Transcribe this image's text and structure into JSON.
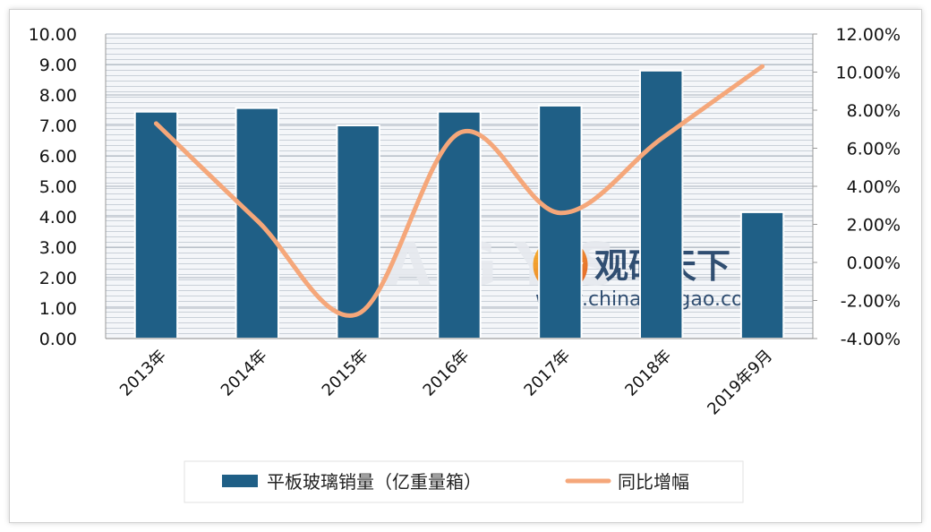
{
  "chart_data": {
    "type": "bar",
    "categories": [
      "2013年",
      "2014年",
      "2015年",
      "2016年",
      "2017年",
      "2018年",
      "2019年9月"
    ],
    "series": [
      {
        "name": "平板玻璃销量（亿重量箱）",
        "type": "bar",
        "axis": "left",
        "color": "#1f5f86",
        "values": [
          7.45,
          7.57,
          7.0,
          7.45,
          7.65,
          8.8,
          4.15
        ]
      },
      {
        "name": "同比增幅",
        "type": "line",
        "axis": "right",
        "color": "#f5a77a",
        "values": [
          7.3,
          2.2,
          -2.7,
          6.8,
          2.6,
          6.5,
          10.3
        ]
      }
    ],
    "y_left": {
      "min": 0,
      "max": 10,
      "tick_labels": [
        "0.00",
        "1.00",
        "2.00",
        "3.00",
        "4.00",
        "5.00",
        "6.00",
        "7.00",
        "8.00",
        "9.00",
        "10.00"
      ]
    },
    "y_right": {
      "min": -4,
      "max": 12,
      "tick_labels": [
        "-4.00%",
        "-2.00%",
        "0.00%",
        "2.00%",
        "4.00%",
        "6.00%",
        "8.00%",
        "10.00%",
        "12.00%"
      ]
    },
    "grid": true,
    "legend": "bottom",
    "watermark": {
      "brand": "观研天下",
      "url": "www.chinabaogao.com",
      "letters": "AGYS"
    }
  }
}
